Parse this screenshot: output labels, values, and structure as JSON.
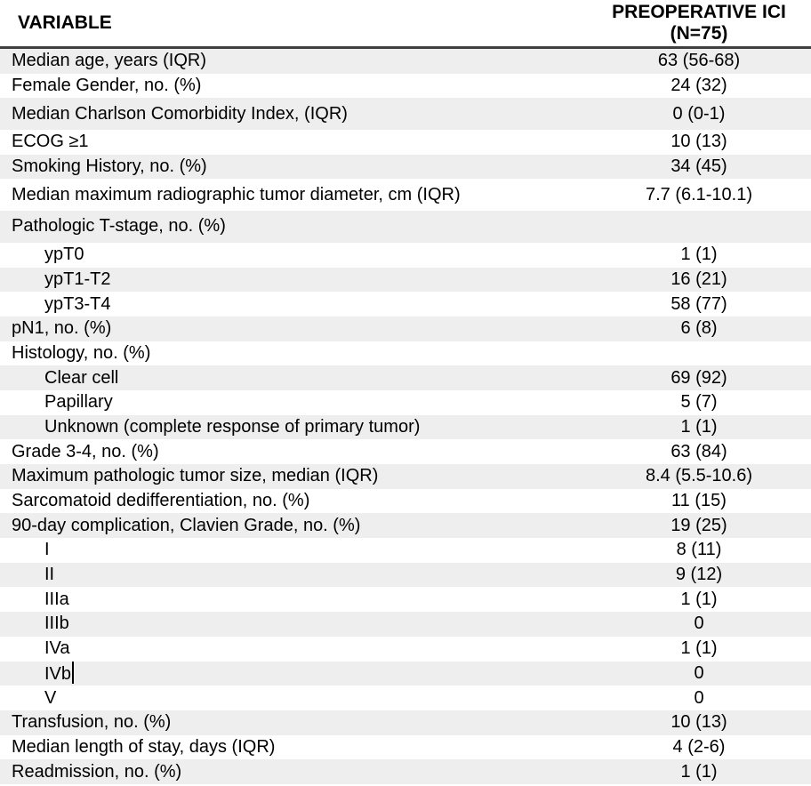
{
  "table": {
    "columns": [
      {
        "label": "VARIABLE"
      },
      {
        "label": "PREOPERATIVE ICI",
        "sublabel": "(N=75)"
      }
    ],
    "rows": [
      {
        "label": "Median age, years (IQR)",
        "value": "63 (56-68)",
        "indent": false
      },
      {
        "label": "Female Gender, no. (%)",
        "value": "24 (32)",
        "indent": false
      },
      {
        "label": "Median Charlson Comorbidity Index, (IQR)",
        "value": "0 (0-1)",
        "indent": false
      },
      {
        "label": "ECOG ≥1",
        "value": "10 (13)",
        "indent": false
      },
      {
        "label": "Smoking History, no. (%)",
        "value": "34 (45)",
        "indent": false
      },
      {
        "label": "Median maximum radiographic tumor diameter, cm (IQR)",
        "value": "7.7 (6.1-10.1)",
        "indent": false
      },
      {
        "label": "Pathologic T-stage, no. (%)",
        "value": "",
        "indent": false
      },
      {
        "label": "ypT0",
        "value": "1 (1)",
        "indent": true
      },
      {
        "label": "ypT1-T2",
        "value": "16 (21)",
        "indent": true
      },
      {
        "label": "ypT3-T4",
        "value": "58 (77)",
        "indent": true
      },
      {
        "label": "pN1, no. (%)",
        "value": "6 (8)",
        "indent": false
      },
      {
        "label": "Histology, no. (%)",
        "value": "",
        "indent": false
      },
      {
        "label": "Clear cell",
        "value": "69 (92)",
        "indent": true
      },
      {
        "label": "Papillary",
        "value": "5 (7)",
        "indent": true
      },
      {
        "label": "Unknown (complete response of primary tumor)",
        "value": "1 (1)",
        "indent": true
      },
      {
        "label": "Grade 3-4, no. (%)",
        "value": "63 (84)",
        "indent": false
      },
      {
        "label": "Maximum pathologic tumor size, median (IQR)",
        "value": "8.4 (5.5-10.6)",
        "indent": false
      },
      {
        "label": "Sarcomatoid dedifferentiation, no. (%)",
        "value": "11 (15)",
        "indent": false
      },
      {
        "label": "90-day complication, Clavien Grade, no. (%)",
        "value": "19 (25)",
        "indent": false
      },
      {
        "label": "I",
        "value": "8 (11)",
        "indent": true
      },
      {
        "label": "II",
        "value": "9 (12)",
        "indent": true
      },
      {
        "label": "IIIa",
        "value": "1 (1)",
        "indent": true
      },
      {
        "label": "IIIb",
        "value": "0",
        "indent": true
      },
      {
        "label": "IVa",
        "value": "1 (1)",
        "indent": true
      },
      {
        "label": "IVb",
        "value": "0",
        "indent": true,
        "caret": true
      },
      {
        "label": "V",
        "value": "0",
        "indent": true
      },
      {
        "label": "Transfusion, no. (%)",
        "value": "10 (13)",
        "indent": false
      },
      {
        "label": "Median length of stay, days (IQR)",
        "value": "4 (2-6)",
        "indent": false
      },
      {
        "label": "Readmission, no. (%)",
        "value": "1 (1)",
        "indent": false
      }
    ]
  },
  "colors": {
    "stripe": "#eeeeee",
    "header_border": "#3f3f3f",
    "text": "#000000",
    "background": "#ffffff"
  }
}
